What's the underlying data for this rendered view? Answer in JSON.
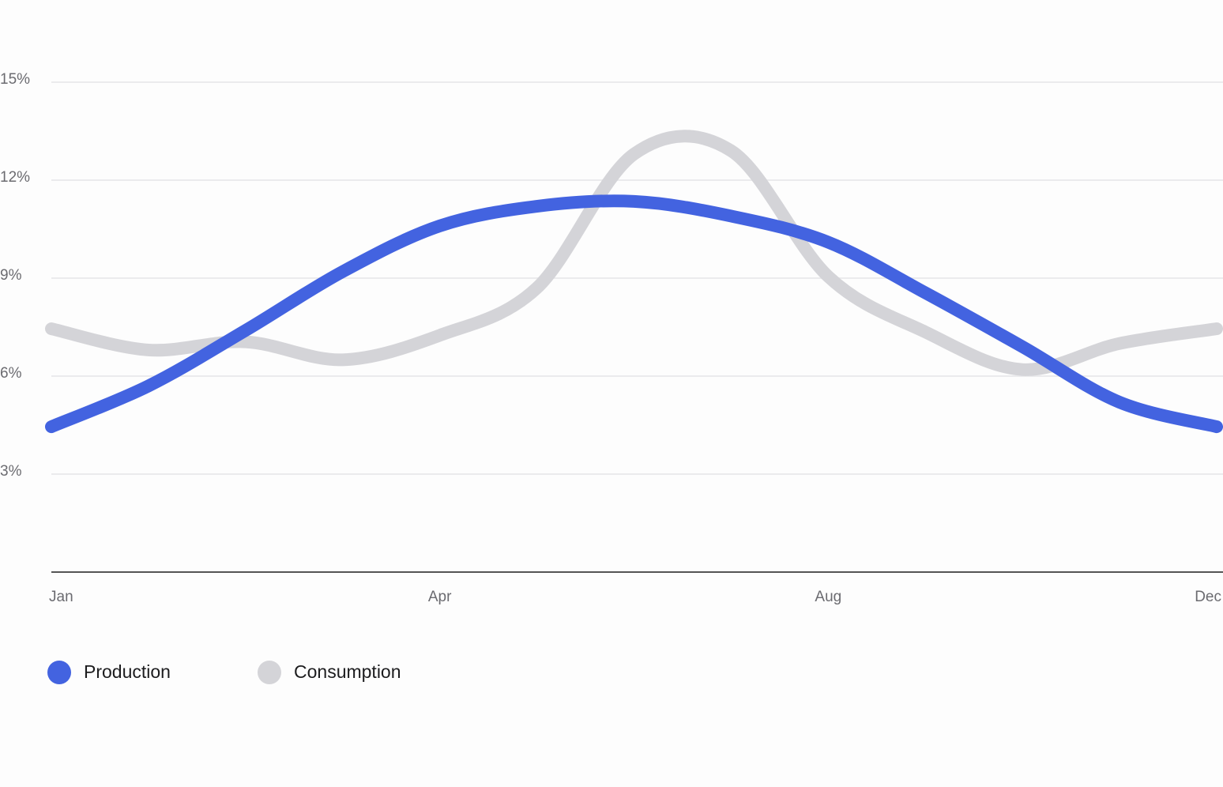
{
  "chart_data": {
    "type": "line",
    "categories": [
      "Jan",
      null,
      null,
      null,
      "Apr",
      null,
      null,
      null,
      "Aug",
      null,
      null,
      null,
      "Dec"
    ],
    "series": [
      {
        "name": "Production",
        "color": "#4363e0",
        "values": [
          4.45,
          5.7,
          7.4,
          9.2,
          10.6,
          11.2,
          11.35,
          10.9,
          10.1,
          8.55,
          6.9,
          5.2,
          4.45
        ]
      },
      {
        "name": "Consumption",
        "color": "#d4d4d8",
        "values": [
          7.45,
          6.8,
          7.05,
          6.5,
          7.25,
          8.7,
          12.8,
          12.9,
          9.05,
          7.35,
          6.2,
          7.0,
          7.45
        ]
      }
    ],
    "ylim": [
      0,
      15
    ],
    "yticks": [
      {
        "value": 3,
        "label": "3%"
      },
      {
        "value": 6,
        "label": "6%"
      },
      {
        "value": 9,
        "label": "9%"
      },
      {
        "value": 12,
        "label": "12%"
      },
      {
        "value": 15,
        "label": "15%"
      }
    ],
    "grid": true
  }
}
